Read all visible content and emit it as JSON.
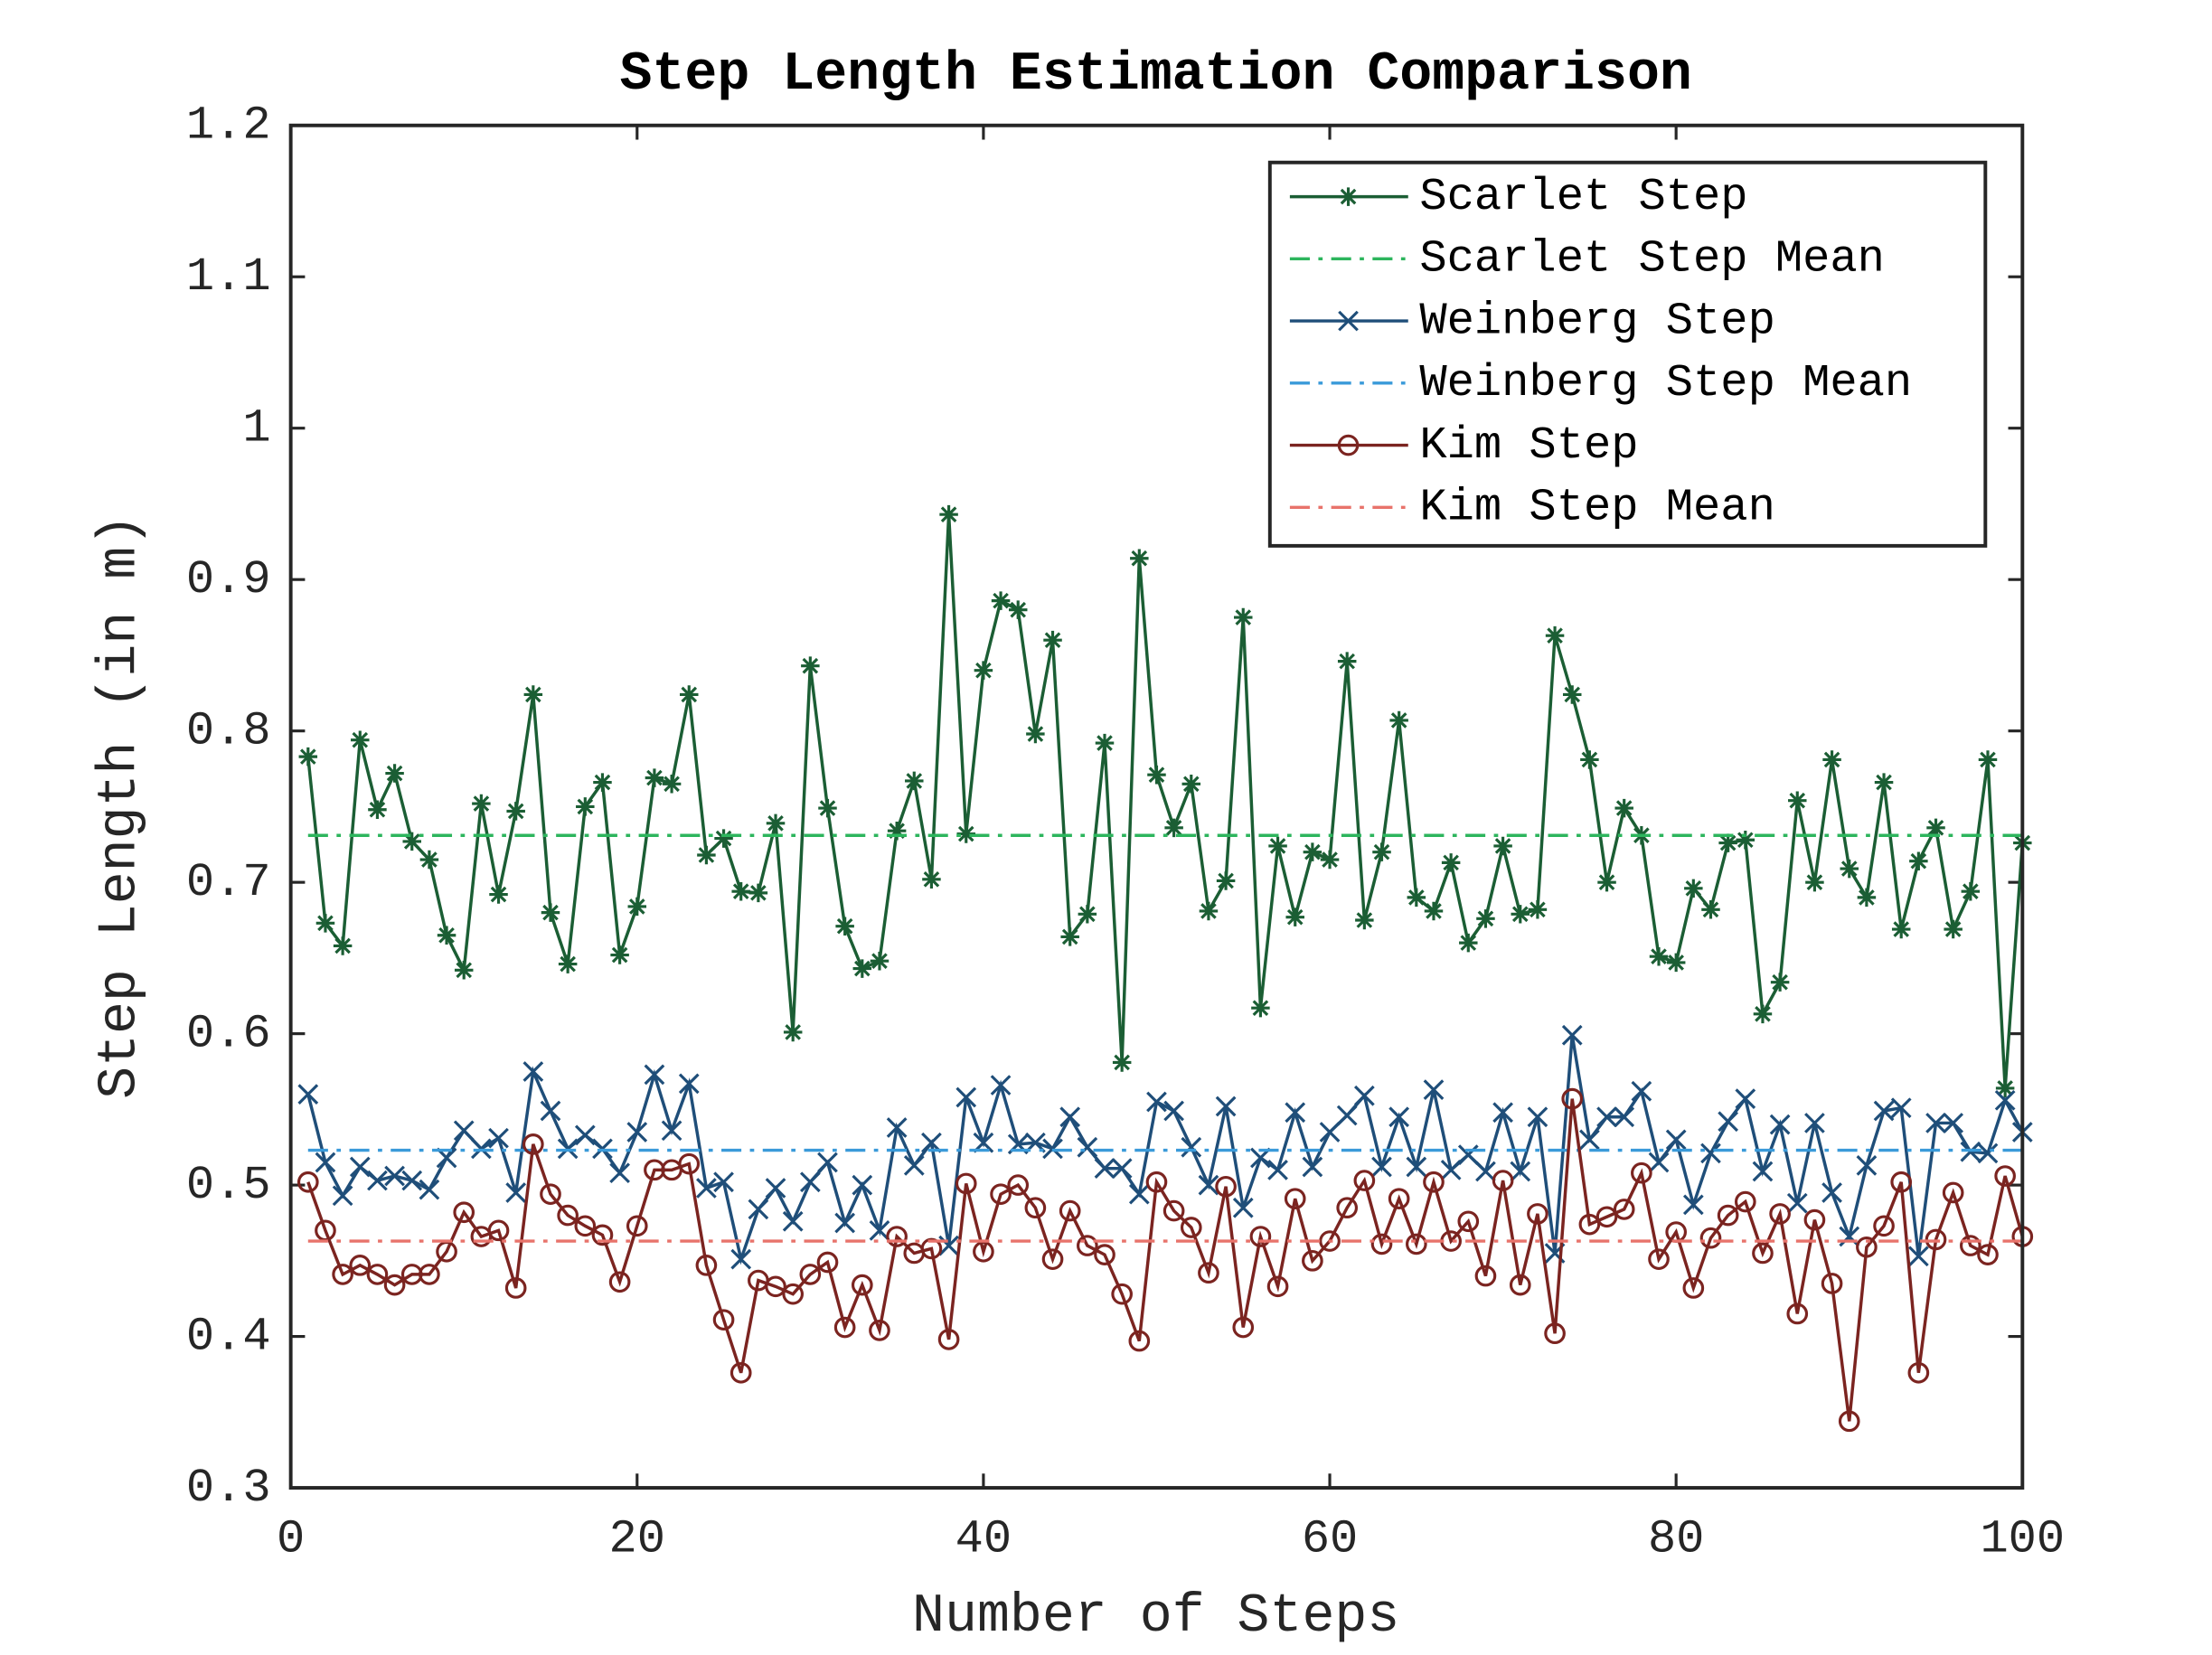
{
  "chart_data": {
    "type": "line",
    "title": "Step Length Estimation Comparison",
    "x_label": "Number of Steps",
    "y_label": "Step Length (in m)",
    "x": [
      1,
      2,
      3,
      4,
      5,
      6,
      7,
      8,
      9,
      10,
      11,
      12,
      13,
      14,
      15,
      16,
      17,
      18,
      19,
      20,
      21,
      22,
      23,
      24,
      25,
      26,
      27,
      28,
      29,
      30,
      31,
      32,
      33,
      34,
      35,
      36,
      37,
      38,
      39,
      40,
      41,
      42,
      43,
      44,
      45,
      46,
      47,
      48,
      49,
      50,
      51,
      52,
      53,
      54,
      55,
      56,
      57,
      58,
      59,
      60,
      61,
      62,
      63,
      64,
      65,
      66,
      67,
      68,
      69,
      70,
      71,
      72,
      73,
      74,
      75,
      76,
      77,
      78,
      79,
      80,
      81,
      82,
      83,
      84,
      85,
      86,
      87,
      88,
      89,
      90,
      91,
      92,
      93,
      94,
      95,
      96,
      97,
      98,
      99,
      100
    ],
    "xlim": [
      0,
      100
    ],
    "xticks": [
      0,
      20,
      40,
      60,
      80,
      100
    ],
    "ylim": [
      0.3,
      1.2
    ],
    "yticks": [
      0.3,
      0.4,
      0.5,
      0.6,
      0.7,
      0.8,
      0.9,
      1,
      1.1,
      1.2
    ],
    "grid": false,
    "legend": "upper right",
    "series": [
      {
        "name": "Scarlet Step",
        "color": "#1b5e34",
        "marker": "asterisk",
        "linestyle": "solid",
        "values": [
          0.783,
          0.673,
          0.658,
          0.794,
          0.748,
          0.772,
          0.727,
          0.715,
          0.665,
          0.642,
          0.752,
          0.692,
          0.747,
          0.824,
          0.68,
          0.646,
          0.75,
          0.766,
          0.652,
          0.684,
          0.769,
          0.765,
          0.824,
          0.718,
          0.729,
          0.694,
          0.693,
          0.739,
          0.601,
          0.843,
          0.749,
          0.671,
          0.643,
          0.648,
          0.734,
          0.767,
          0.702,
          0.943,
          0.732,
          0.84,
          0.886,
          0.88,
          0.798,
          0.86,
          0.664,
          0.679,
          0.792,
          0.581,
          0.914,
          0.771,
          0.736,
          0.765,
          0.681,
          0.701,
          0.875,
          0.617,
          0.724,
          0.677,
          0.72,
          0.715,
          0.846,
          0.675,
          0.72,
          0.807,
          0.69,
          0.681,
          0.713,
          0.66,
          0.676,
          0.724,
          0.679,
          0.682,
          0.863,
          0.824,
          0.781,
          0.7,
          0.749,
          0.731,
          0.651,
          0.647,
          0.696,
          0.682,
          0.726,
          0.728,
          0.613,
          0.634,
          0.754,
          0.7,
          0.781,
          0.709,
          0.69,
          0.766,
          0.669,
          0.714,
          0.736,
          0.669,
          0.694,
          0.781,
          0.564,
          0.726
        ]
      },
      {
        "name": "Scarlet Step Mean",
        "color": "#2db55d",
        "linestyle": "dashdot",
        "value": 0.731
      },
      {
        "name": "Weinberg Step",
        "color": "#1f4e79",
        "marker": "x",
        "linestyle": "solid",
        "values": [
          0.56,
          0.515,
          0.493,
          0.512,
          0.503,
          0.506,
          0.503,
          0.497,
          0.518,
          0.536,
          0.524,
          0.531,
          0.495,
          0.575,
          0.549,
          0.524,
          0.533,
          0.524,
          0.508,
          0.535,
          0.573,
          0.536,
          0.567,
          0.498,
          0.502,
          0.451,
          0.484,
          0.498,
          0.476,
          0.502,
          0.515,
          0.475,
          0.5,
          0.47,
          0.538,
          0.513,
          0.528,
          0.46,
          0.558,
          0.528,
          0.566,
          0.527,
          0.528,
          0.524,
          0.545,
          0.525,
          0.511,
          0.511,
          0.494,
          0.555,
          0.549,
          0.525,
          0.5,
          0.552,
          0.485,
          0.518,
          0.51,
          0.548,
          0.512,
          0.535,
          0.546,
          0.559,
          0.512,
          0.545,
          0.512,
          0.563,
          0.51,
          0.52,
          0.509,
          0.548,
          0.509,
          0.545,
          0.455,
          0.599,
          0.53,
          0.545,
          0.545,
          0.562,
          0.515,
          0.53,
          0.487,
          0.521,
          0.542,
          0.557,
          0.509,
          0.54,
          0.488,
          0.541,
          0.495,
          0.466,
          0.513,
          0.549,
          0.551,
          0.453,
          0.541,
          0.541,
          0.522,
          0.521,
          0.556,
          0.535
        ]
      },
      {
        "name": "Weinberg Step Mean",
        "color": "#3a9ad9",
        "linestyle": "dashdot",
        "value": 0.523
      },
      {
        "name": "Kim Step",
        "color": "#7b2420",
        "marker": "circle",
        "linestyle": "solid",
        "values": [
          0.502,
          0.47,
          0.441,
          0.447,
          0.441,
          0.434,
          0.441,
          0.441,
          0.456,
          0.482,
          0.466,
          0.47,
          0.432,
          0.527,
          0.494,
          0.48,
          0.473,
          0.467,
          0.436,
          0.473,
          0.51,
          0.51,
          0.514,
          0.447,
          0.411,
          0.376,
          0.437,
          0.433,
          0.428,
          0.441,
          0.449,
          0.406,
          0.434,
          0.404,
          0.466,
          0.455,
          0.458,
          0.398,
          0.501,
          0.456,
          0.494,
          0.5,
          0.485,
          0.451,
          0.483,
          0.46,
          0.454,
          0.428,
          0.397,
          0.502,
          0.483,
          0.472,
          0.442,
          0.499,
          0.406,
          0.466,
          0.433,
          0.491,
          0.45,
          0.463,
          0.485,
          0.503,
          0.461,
          0.491,
          0.461,
          0.502,
          0.463,
          0.476,
          0.44,
          0.503,
          0.434,
          0.481,
          0.402,
          0.557,
          0.474,
          0.479,
          0.484,
          0.508,
          0.451,
          0.469,
          0.432,
          0.465,
          0.48,
          0.489,
          0.455,
          0.481,
          0.415,
          0.477,
          0.435,
          0.344,
          0.459,
          0.473,
          0.502,
          0.376,
          0.464,
          0.495,
          0.46,
          0.454,
          0.506,
          0.466
        ]
      },
      {
        "name": "Kim Step Mean",
        "color": "#e8736b",
        "linestyle": "dashdot",
        "value": 0.463
      }
    ]
  }
}
